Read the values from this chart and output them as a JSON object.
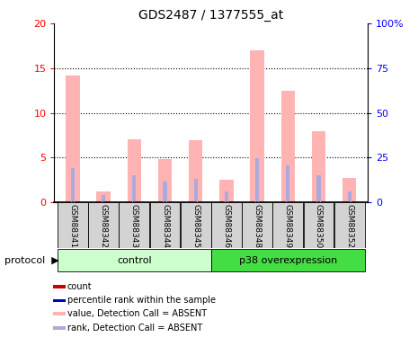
{
  "title": "GDS2487 / 1377555_at",
  "samples": [
    "GSM88341",
    "GSM88342",
    "GSM88343",
    "GSM88344",
    "GSM88345",
    "GSM88346",
    "GSM88348",
    "GSM88349",
    "GSM88350",
    "GSM88352"
  ],
  "values_absent": [
    14.2,
    1.2,
    7.0,
    4.8,
    6.9,
    2.5,
    17.0,
    12.5,
    8.0,
    2.7
  ],
  "rank_absent": [
    3.8,
    0.8,
    3.0,
    2.3,
    2.6,
    1.2,
    4.9,
    4.1,
    3.0,
    1.2
  ],
  "ylim_left": [
    0,
    20
  ],
  "ylim_right": [
    0,
    100
  ],
  "yticks_left": [
    0,
    5,
    10,
    15,
    20
  ],
  "ytick_labels_left": [
    "0",
    "5",
    "10",
    "15",
    "20"
  ],
  "yticks_right": [
    0,
    25,
    50,
    75,
    100
  ],
  "ytick_labels_right": [
    "0",
    "25",
    "50",
    "75",
    "100%"
  ],
  "color_value_absent": "#FFB3B3",
  "color_rank_absent": "#AAAADD",
  "color_count": "#CC0000",
  "color_percentile": "#0000CC",
  "pink_bar_width": 0.45,
  "blue_bar_width": 0.12,
  "red_bar_width": 0.08,
  "groups_info": [
    {
      "label": "control",
      "start": 0,
      "end": 4,
      "color": "#CCFFCC",
      "edge": "#44AA44"
    },
    {
      "label": "p38 overexpression",
      "start": 5,
      "end": 9,
      "color": "#44DD44",
      "edge": "#44AA44"
    }
  ],
  "bg_color": "#FFFFFF",
  "legend_items": [
    {
      "label": "count",
      "color": "#CC0000"
    },
    {
      "label": "percentile rank within the sample",
      "color": "#0000CC"
    },
    {
      "label": "value, Detection Call = ABSENT",
      "color": "#FFB3B3"
    },
    {
      "label": "rank, Detection Call = ABSENT",
      "color": "#AAAADD"
    }
  ]
}
